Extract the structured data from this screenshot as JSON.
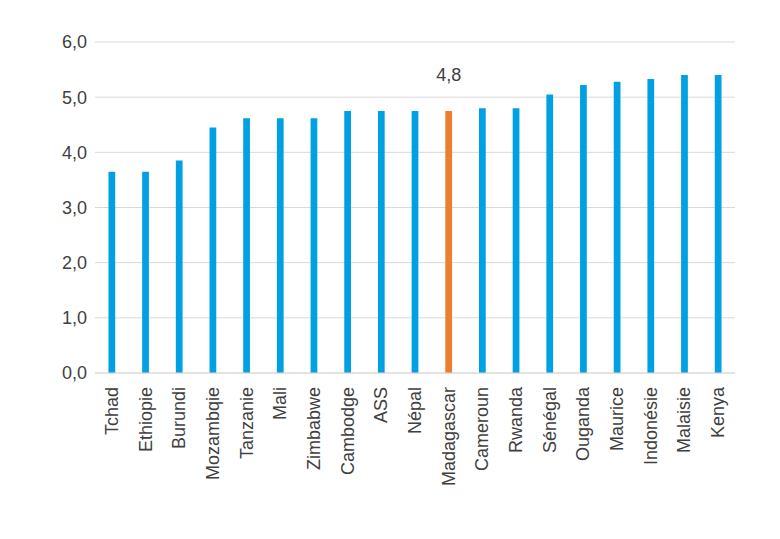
{
  "chart_data": {
    "type": "bar",
    "categories": [
      "Tchad",
      "Ethiopie",
      "Burundi",
      "Mozambqie",
      "Tanzanie",
      "Mali",
      "Zimbabwe",
      "Cambodge",
      "ASS",
      "Népal",
      "Madagascar",
      "Cameroun",
      "Rwanda",
      "Sénégal",
      "Ouganda",
      "Maurice",
      "Indonésie",
      "Malaisie",
      "Kenya"
    ],
    "values": [
      3.65,
      3.65,
      3.85,
      4.45,
      4.62,
      4.62,
      4.62,
      4.75,
      4.75,
      4.75,
      4.75,
      4.8,
      4.8,
      5.05,
      5.22,
      5.28,
      5.33,
      5.4,
      5.4
    ],
    "value_labels": [
      null,
      null,
      null,
      null,
      null,
      null,
      null,
      null,
      null,
      null,
      "4,8",
      null,
      null,
      null,
      null,
      null,
      null,
      null,
      null
    ],
    "data_labels": true,
    "colors": [
      "#00a0e3",
      "#00a0e3",
      "#00a0e3",
      "#00a0e3",
      "#00a0e3",
      "#00a0e3",
      "#00a0e3",
      "#00a0e3",
      "#00a0e3",
      "#00a0e3",
      "#ed7d31",
      "#00a0e3",
      "#00a0e3",
      "#00a0e3",
      "#00a0e3",
      "#00a0e3",
      "#00a0e3",
      "#00a0e3",
      "#00a0e3"
    ],
    "ylim": [
      0,
      6
    ],
    "yticks": [
      {
        "value": 0,
        "label": "0,0"
      },
      {
        "value": 1,
        "label": "1,0"
      },
      {
        "value": 2,
        "label": "2,0"
      },
      {
        "value": 3,
        "label": "3,0"
      },
      {
        "value": 4,
        "label": "4,0"
      },
      {
        "value": 5,
        "label": "5,0"
      },
      {
        "value": 6,
        "label": "6,0"
      }
    ],
    "grid": true
  }
}
